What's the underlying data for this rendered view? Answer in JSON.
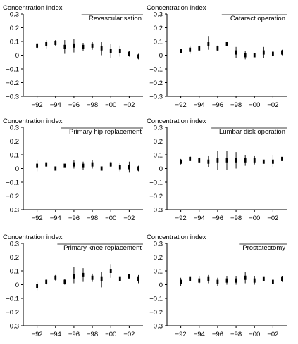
{
  "chart_data": [
    {
      "type": "errorbar",
      "title": "Revascularisation",
      "ylabel": "Concentration index",
      "ylim": [
        -0.3,
        0.3
      ],
      "yticks": [
        -0.3,
        -0.2,
        -0.1,
        0,
        0.1,
        0.2,
        0.3
      ],
      "ytick_labels": [
        "−0.3",
        "−0.2",
        "−0.1",
        "0",
        "0.1",
        "0.2",
        "0.3"
      ],
      "xlim": [
        1990.5,
        2003.5
      ],
      "xticks": [
        1992,
        1994,
        1996,
        1998,
        2000,
        2002
      ],
      "xtick_labels": [
        "−92",
        "−94",
        "−96",
        "−98",
        "−00",
        "−02"
      ],
      "x": [
        1992,
        1993,
        1994,
        1995,
        1996,
        1997,
        1998,
        1999,
        2000,
        2001,
        2002,
        2003
      ],
      "y": [
        0.07,
        0.08,
        0.09,
        0.06,
        0.07,
        0.06,
        0.07,
        0.05,
        0.03,
        0.03,
        0.01,
        -0.01
      ],
      "lower": [
        0.05,
        0.05,
        0.07,
        0.01,
        0.02,
        0.03,
        0.04,
        0.0,
        -0.02,
        -0.01,
        -0.01,
        -0.03
      ],
      "upper": [
        0.09,
        0.11,
        0.11,
        0.11,
        0.12,
        0.09,
        0.1,
        0.1,
        0.08,
        0.07,
        0.03,
        0.01
      ]
    },
    {
      "type": "errorbar",
      "title": "Cataract operation",
      "ylabel": "Concentration index",
      "ylim": [
        -0.3,
        0.3
      ],
      "yticks": [
        -0.3,
        -0.2,
        -0.1,
        0,
        0.1,
        0.2,
        0.3
      ],
      "ytick_labels": [
        "−0.3",
        "−0.2",
        "−0.1",
        "0",
        "0.1",
        "0.2",
        "0.3"
      ],
      "xlim": [
        1990.5,
        2003.5
      ],
      "xticks": [
        1992,
        1994,
        1996,
        1998,
        2000,
        2002
      ],
      "xtick_labels": [
        "−92",
        "−94",
        "−96",
        "−98",
        "−00",
        "−02"
      ],
      "x": [
        1992,
        1993,
        1994,
        1995,
        1996,
        1997,
        1998,
        1999,
        2000,
        2001,
        2002,
        2003
      ],
      "y": [
        0.03,
        0.04,
        0.05,
        0.08,
        0.05,
        0.08,
        0.02,
        0.0,
        0.0,
        0.02,
        0.01,
        0.02
      ],
      "lower": [
        0.02,
        0.01,
        0.03,
        0.04,
        0.03,
        0.07,
        -0.02,
        -0.03,
        -0.01,
        -0.02,
        -0.01,
        0.0
      ],
      "upper": [
        0.04,
        0.07,
        0.07,
        0.14,
        0.07,
        0.09,
        0.06,
        0.03,
        0.01,
        0.06,
        0.03,
        0.04
      ]
    },
    {
      "type": "errorbar",
      "title": "Primary hip replacement",
      "ylabel": "Concentration index",
      "ylim": [
        -0.3,
        0.3
      ],
      "yticks": [
        -0.3,
        -0.2,
        -0.1,
        0,
        0.1,
        0.2,
        0.3
      ],
      "ytick_labels": [
        "−0.3",
        "−0.2",
        "−0.1",
        "0",
        "0.1",
        "0.2",
        "0.3"
      ],
      "xlim": [
        1990.5,
        2003.5
      ],
      "xticks": [
        1992,
        1994,
        1996,
        1998,
        2000,
        2002
      ],
      "xtick_labels": [
        "−92",
        "−94",
        "−96",
        "−98",
        "−00",
        "−02"
      ],
      "x": [
        1992,
        1993,
        1994,
        1995,
        1996,
        1997,
        1998,
        1999,
        2000,
        2001,
        2002,
        2003
      ],
      "y": [
        0.02,
        0.03,
        0.0,
        0.02,
        0.03,
        0.02,
        0.03,
        0.0,
        0.03,
        0.01,
        0.01,
        0.0
      ],
      "lower": [
        -0.02,
        0.02,
        -0.01,
        0.01,
        0.0,
        -0.01,
        0.0,
        -0.01,
        0.01,
        -0.02,
        -0.03,
        -0.02
      ],
      "upper": [
        0.06,
        0.04,
        0.01,
        0.03,
        0.06,
        0.05,
        0.06,
        0.01,
        0.05,
        0.04,
        0.05,
        0.02
      ]
    },
    {
      "type": "errorbar",
      "title": "Lumbar disk operation",
      "ylabel": "Concentration index",
      "ylim": [
        -0.3,
        0.3
      ],
      "yticks": [
        -0.3,
        -0.2,
        -0.1,
        0,
        0.1,
        0.2,
        0.3
      ],
      "ytick_labels": [
        "−0.3",
        "−0.2",
        "−0.1",
        "0",
        "0.1",
        "0.2",
        "0.3"
      ],
      "xlim": [
        1990.5,
        2003.5
      ],
      "xticks": [
        1992,
        1994,
        1996,
        1998,
        2000,
        2002
      ],
      "xtick_labels": [
        "−92",
        "−94",
        "−96",
        "−98",
        "−00",
        "−02"
      ],
      "x": [
        1992,
        1993,
        1994,
        1995,
        1996,
        1997,
        1998,
        1999,
        2000,
        2001,
        2002,
        2003
      ],
      "y": [
        0.05,
        0.07,
        0.06,
        0.05,
        0.06,
        0.06,
        0.06,
        0.06,
        0.06,
        0.05,
        0.05,
        0.07
      ],
      "lower": [
        0.03,
        0.06,
        0.04,
        0.01,
        -0.01,
        -0.01,
        0.0,
        0.02,
        0.03,
        0.04,
        0.01,
        0.06
      ],
      "upper": [
        0.07,
        0.09,
        0.08,
        0.09,
        0.13,
        0.13,
        0.12,
        0.1,
        0.09,
        0.06,
        0.1,
        0.08
      ]
    },
    {
      "type": "errorbar",
      "title": "Primary knee replacement",
      "ylabel": "Concentration index",
      "ylim": [
        -0.3,
        0.3
      ],
      "yticks": [
        -0.3,
        -0.2,
        -0.1,
        0,
        0.1,
        0.2,
        0.3
      ],
      "ytick_labels": [
        "−0.3",
        "−0.2",
        "−0.1",
        "0",
        "0.1",
        "0.2",
        "0.3"
      ],
      "xlim": [
        1990.5,
        2003.5
      ],
      "xticks": [
        1992,
        1994,
        1996,
        1998,
        2000,
        2002
      ],
      "xtick_labels": [
        "−92",
        "−94",
        "−96",
        "−98",
        "−00",
        "−02"
      ],
      "x": [
        1992,
        1993,
        1994,
        1995,
        1996,
        1997,
        1998,
        1999,
        2000,
        2001,
        2002,
        2003
      ],
      "y": [
        -0.01,
        0.02,
        0.05,
        0.02,
        0.06,
        0.07,
        0.05,
        0.04,
        0.1,
        0.04,
        0.06,
        0.04
      ],
      "lower": [
        -0.04,
        0.0,
        0.03,
        0.0,
        0.01,
        0.02,
        0.02,
        -0.02,
        0.05,
        0.03,
        0.05,
        0.01
      ],
      "upper": [
        0.02,
        0.04,
        0.07,
        0.04,
        0.13,
        0.12,
        0.08,
        0.09,
        0.15,
        0.05,
        0.07,
        0.07
      ]
    },
    {
      "type": "errorbar",
      "title": "Prostatectomy",
      "ylabel": "Concentration index",
      "ylim": [
        -0.3,
        0.3
      ],
      "yticks": [
        -0.3,
        -0.2,
        -0.1,
        0,
        0.1,
        0.2,
        0.3
      ],
      "ytick_labels": [
        "−0.3",
        "−0.2",
        "−0.1",
        "0",
        "0.1",
        "0.2",
        "0.3"
      ],
      "xlim": [
        1990.5,
        2003.5
      ],
      "xticks": [
        1992,
        1994,
        1996,
        1998,
        2000,
        2002
      ],
      "xtick_labels": [
        "−92",
        "−94",
        "−96",
        "−98",
        "−00",
        "−02"
      ],
      "x": [
        1992,
        1993,
        1994,
        1995,
        1996,
        1997,
        1998,
        1999,
        2000,
        2001,
        2002,
        2003
      ],
      "y": [
        0.02,
        0.04,
        0.03,
        0.04,
        0.02,
        0.03,
        0.03,
        0.05,
        0.03,
        0.04,
        0.02,
        0.04
      ],
      "lower": [
        -0.01,
        0.03,
        0.01,
        0.01,
        -0.01,
        0.0,
        0.0,
        0.01,
        0.0,
        0.03,
        0.01,
        0.02
      ],
      "upper": [
        0.05,
        0.05,
        0.06,
        0.07,
        0.05,
        0.06,
        0.06,
        0.09,
        0.06,
        0.05,
        0.03,
        0.06
      ]
    }
  ]
}
